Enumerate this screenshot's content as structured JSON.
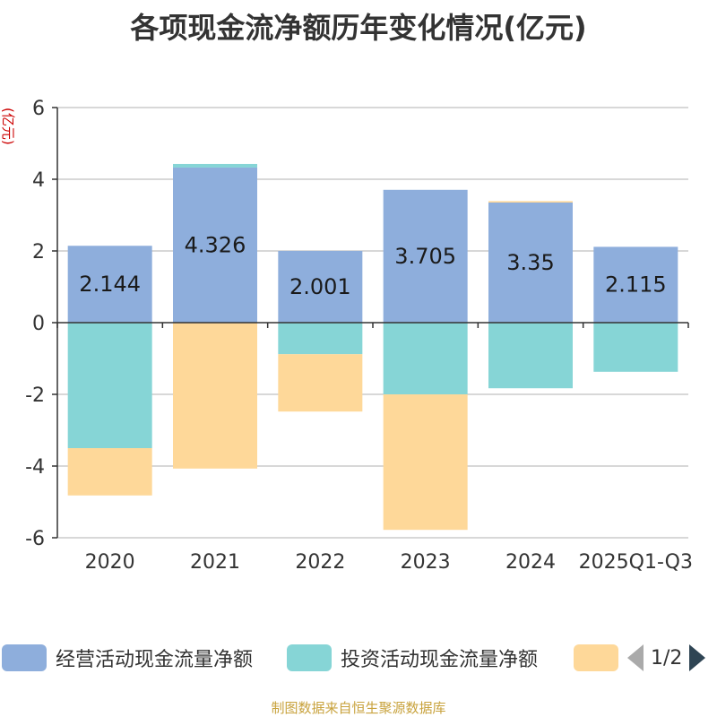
{
  "title": "各项现金流净额历年变化情况(亿元)",
  "unit": "(亿元)",
  "source": "制图数据来自恒生聚源数据库",
  "legend": {
    "page_indicator": "1/2"
  },
  "colors": {
    "operating": "#8eaedc",
    "investing": "#86d5d6",
    "financing": "#fed899",
    "grid": "#cccccc",
    "axis": "#333333"
  },
  "chart_data": {
    "type": "bar",
    "stacked": true,
    "title": "各项现金流净额历年变化情况(亿元)",
    "ylabel": "(亿元)",
    "ylim": [
      -6,
      6
    ],
    "yticks": [
      -6,
      -4,
      -2,
      0,
      2,
      4,
      6
    ],
    "grid": true,
    "legend_position": "bottom",
    "categories": [
      "2020",
      "2021",
      "2022",
      "2023",
      "2024",
      "2025Q1-Q3"
    ],
    "series": [
      {
        "name": "经营活动现金流量净额",
        "color_key": "operating",
        "values": [
          2.144,
          4.326,
          2.001,
          3.705,
          3.35,
          2.115
        ],
        "show_labels": true
      },
      {
        "name": "投资活动现金流量净额",
        "color_key": "investing",
        "values": [
          -3.5,
          0.1,
          -0.88,
          -2.0,
          -1.83,
          -1.37
        ],
        "show_labels": false
      },
      {
        "name": "",
        "color_key": "financing",
        "values": [
          -1.32,
          -4.07,
          -1.6,
          -3.78,
          0.04,
          0
        ],
        "show_labels": false
      }
    ]
  }
}
